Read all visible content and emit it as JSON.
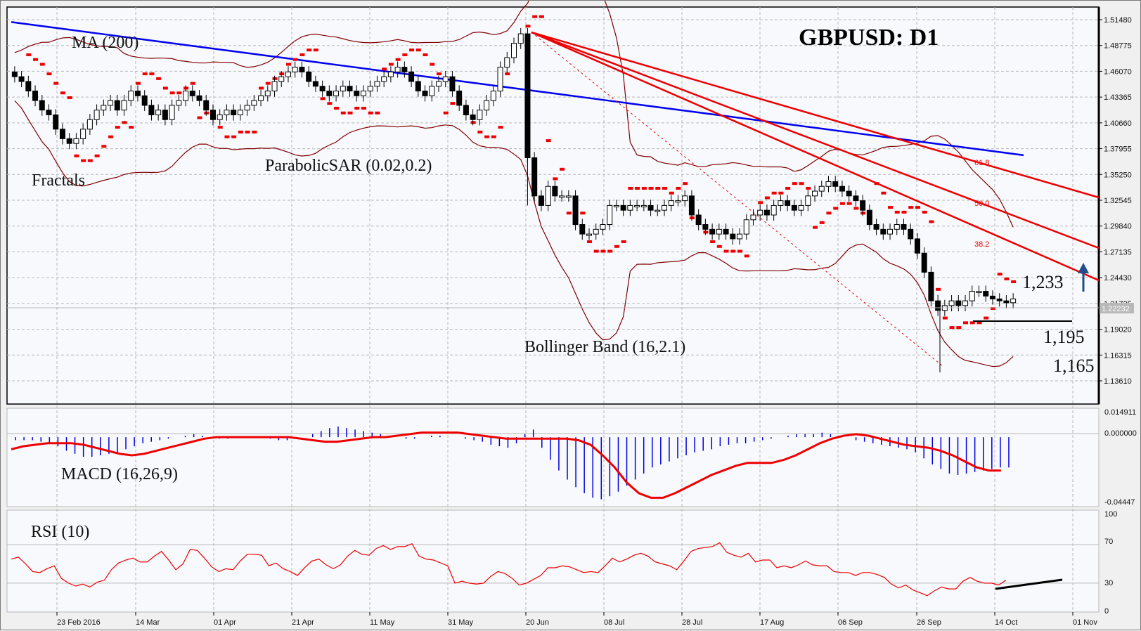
{
  "chart_data": [
    {
      "type": "candlestick",
      "title": "GBPUSD: D1",
      "symbol": "GBPUSD",
      "timeframe": "D1",
      "y_ticks": [
        "1.51480",
        "1.48775",
        "1.46070",
        "1.43365",
        "1.40660",
        "1.37955",
        "1.35250",
        "1.32545",
        "1.29840",
        "1.27135",
        "1.24430",
        "1.21725",
        "1.19020",
        "1.16315",
        "1.13610"
      ],
      "ylim": [
        1.1361,
        1.5148
      ],
      "current_price": "1.22232",
      "x_ticks": [
        "23 Feb 2016",
        "14 Mar",
        "01 Apr",
        "21 Apr",
        "11 May",
        "31 May",
        "20 Jun",
        "08 Jul",
        "28 Jul",
        "17 Aug",
        "06 Sep",
        "26 Sep",
        "14 Oct",
        "01 Nov"
      ],
      "indicators": [
        "MA (200)",
        "Fractals",
        "ParabolicSAR (0.02,0.2)",
        "Bollinger Band (16,2.1)"
      ],
      "fibonacci_fan_levels": [
        "61.8",
        "50.0",
        "38.2"
      ],
      "annotations": {
        "resistance": "1,233",
        "support": "1,195",
        "target_low": "1,165"
      },
      "close_series_approx": [
        1.455,
        1.45,
        1.44,
        1.43,
        1.42,
        1.415,
        1.4,
        1.39,
        1.385,
        1.39,
        1.4,
        1.41,
        1.42,
        1.425,
        1.43,
        1.42,
        1.43,
        1.44,
        1.435,
        1.425,
        1.415,
        1.42,
        1.41,
        1.425,
        1.43,
        1.44,
        1.435,
        1.43,
        1.42,
        1.41,
        1.415,
        1.42,
        1.415,
        1.42,
        1.425,
        1.43,
        1.435,
        1.44,
        1.45,
        1.455,
        1.46,
        1.465,
        1.46,
        1.45,
        1.445,
        1.44,
        1.435,
        1.44,
        1.445,
        1.44,
        1.435,
        1.44,
        1.445,
        1.45,
        1.455,
        1.46,
        1.465,
        1.46,
        1.45,
        1.44,
        1.435,
        1.445,
        1.45,
        1.455,
        1.44,
        1.425,
        1.415,
        1.41,
        1.42,
        1.43,
        1.44,
        1.465,
        1.475,
        1.49,
        1.5,
        1.37,
        1.33,
        1.32,
        1.34,
        1.33,
        1.33,
        1.33,
        1.3,
        1.29,
        1.29,
        1.295,
        1.3,
        1.32,
        1.32,
        1.315,
        1.32,
        1.32,
        1.32,
        1.315,
        1.315,
        1.32,
        1.325,
        1.325,
        1.33,
        1.31,
        1.3,
        1.295,
        1.29,
        1.295,
        1.29,
        1.285,
        1.29,
        1.305,
        1.31,
        1.315,
        1.31,
        1.32,
        1.325,
        1.32,
        1.315,
        1.32,
        1.33,
        1.335,
        1.34,
        1.345,
        1.34,
        1.335,
        1.33,
        1.325,
        1.315,
        1.3,
        1.295,
        1.29,
        1.295,
        1.3,
        1.295,
        1.285,
        1.27,
        1.25,
        1.22,
        1.21,
        1.215,
        1.22,
        1.215,
        1.22,
        1.23,
        1.23,
        1.225,
        1.222,
        1.22,
        1.218,
        1.222
      ]
    },
    {
      "type": "bar+line",
      "title": "MACD (16,26,9)",
      "y_ticks": [
        "0.014911",
        "0.000000",
        "-0.04447"
      ],
      "ylim": [
        -0.04447,
        0.014911
      ],
      "histogram_approx": [
        -0.002,
        -0.002,
        -0.002,
        -0.003,
        -0.004,
        -0.006,
        -0.009,
        -0.011,
        -0.013,
        -0.013,
        -0.012,
        -0.011,
        -0.01,
        -0.008,
        -0.006,
        -0.004,
        -0.003,
        -0.002,
        -0.001,
        0.0,
        0.001,
        0.002,
        0.001,
        0.0,
        -0.001,
        -0.001,
        0.0,
        0.0,
        0.0,
        0.0,
        -0.001,
        -0.002,
        -0.002,
        -0.001,
        0.0,
        0.002,
        0.004,
        0.006,
        0.007,
        0.006,
        0.005,
        0.004,
        0.003,
        0.002,
        0.001,
        0.0,
        -0.001,
        -0.001,
        0.0,
        0.001,
        0.001,
        0.0,
        0.0,
        -0.001,
        -0.002,
        -0.003,
        -0.005,
        -0.006,
        -0.007,
        -0.004,
        0.002,
        0.005,
        -0.007,
        -0.015,
        -0.022,
        -0.028,
        -0.033,
        -0.037,
        -0.04,
        -0.041,
        -0.039,
        -0.036,
        -0.032,
        -0.028,
        -0.024,
        -0.02,
        -0.018,
        -0.016,
        -0.014,
        -0.012,
        -0.01,
        -0.009,
        -0.008,
        -0.006,
        -0.005,
        -0.004,
        -0.004,
        -0.003,
        -0.002,
        -0.001,
        0.0,
        0.001,
        0.002,
        0.002,
        0.002,
        0.003,
        0.002,
        0.001,
        0.0,
        -0.002,
        -0.003,
        -0.004,
        -0.005,
        -0.006,
        -0.007,
        -0.008,
        -0.01,
        -0.014,
        -0.018,
        -0.021,
        -0.024,
        -0.025,
        -0.024,
        -0.023,
        -0.022,
        -0.021,
        -0.02,
        -0.02
      ],
      "signal_approx": [
        -0.008,
        -0.006,
        -0.005,
        -0.004,
        -0.004,
        -0.004,
        -0.005,
        -0.007,
        -0.009,
        -0.011,
        -0.012,
        -0.011,
        -0.009,
        -0.007,
        -0.005,
        -0.003,
        -0.001,
        0.0,
        0.0,
        0.0,
        0.0,
        0.0,
        0.0,
        0.0,
        -0.001,
        -0.002,
        -0.003,
        -0.003,
        -0.002,
        -0.001,
        0.0,
        0.0,
        0.001,
        0.002,
        0.003,
        0.003,
        0.003,
        0.003,
        0.002,
        0.001,
        0.0,
        -0.001,
        -0.001,
        -0.001,
        -0.001,
        -0.001,
        -0.001,
        -0.002,
        -0.005,
        -0.012,
        -0.02,
        -0.03,
        -0.037,
        -0.04,
        -0.04,
        -0.037,
        -0.033,
        -0.029,
        -0.025,
        -0.022,
        -0.019,
        -0.017,
        -0.017,
        -0.017,
        -0.015,
        -0.012,
        -0.008,
        -0.004,
        -0.001,
        0.001,
        0.002,
        0.001,
        -0.001,
        -0.003,
        -0.005,
        -0.006,
        -0.007,
        -0.009,
        -0.012,
        -0.016,
        -0.02,
        -0.022,
        -0.022
      ]
    },
    {
      "type": "line",
      "title": "RSI (10)",
      "y_ticks": [
        "100",
        "70",
        "30",
        "0"
      ],
      "ylim": [
        0,
        100
      ],
      "levels": [
        70,
        30
      ],
      "values_approx": [
        55,
        57,
        50,
        42,
        41,
        45,
        48,
        35,
        30,
        27,
        29,
        26,
        31,
        33,
        44,
        51,
        54,
        56,
        52,
        52,
        58,
        63,
        54,
        44,
        50,
        65,
        64,
        56,
        47,
        42,
        45,
        44,
        53,
        60,
        60,
        59,
        48,
        51,
        45,
        42,
        38,
        46,
        53,
        55,
        49,
        45,
        49,
        58,
        64,
        60,
        59,
        66,
        69,
        65,
        68,
        68,
        71,
        58,
        55,
        54,
        51,
        48,
        30,
        32,
        30,
        29,
        30,
        37,
        42,
        40,
        35,
        28,
        30,
        34,
        38,
        46,
        46,
        48,
        47,
        44,
        41,
        42,
        41,
        48,
        56,
        52,
        55,
        59,
        61,
        58,
        52,
        50,
        48,
        44,
        53,
        63,
        66,
        67,
        68,
        72,
        62,
        59,
        57,
        61,
        52,
        54,
        54,
        46,
        48,
        46,
        49,
        53,
        49,
        48,
        48,
        42,
        41,
        41,
        38,
        41,
        41,
        39,
        36,
        29,
        25,
        28,
        23,
        20,
        17,
        22,
        26,
        24,
        24,
        32,
        36,
        32,
        30,
        30,
        28,
        33
      ]
    }
  ],
  "labels": {
    "title": "GBPUSD: D1",
    "ma": "MA (200)",
    "fractals": "Fractals",
    "psar": "ParabolicSAR (0.02,0.2)",
    "bollinger": "Bollinger Band (16,2.1)",
    "macd": "MACD (16,26,9)",
    "rsi": "RSI (10)",
    "fib618": "61.8",
    "fib500": "50.0",
    "fib382": "38.2",
    "level_1233": "1,233",
    "level_1195": "1,195",
    "level_1165": "1,165",
    "price_tag": "1.22232",
    "macd_top": "0.014911",
    "macd_zero": "0.000000",
    "macd_bottom": "-0.04447",
    "rsi_100": "100",
    "rsi_70": "70",
    "rsi_30": "30",
    "rsi_0": "0"
  },
  "colors": {
    "background": "#f7f9fd",
    "bullish_body": "#ffffff",
    "bearish_body": "#000000",
    "ma200": "#0000ee",
    "bollinger": "#800000",
    "psar": "#ee0000",
    "fractal_up": "#00dd00",
    "fractal_down": "#ee0000",
    "fib_fan": "#ee0000",
    "macd_hist": "#0000dd",
    "macd_signal": "#ee0000",
    "rsi_line": "#ee0000",
    "arrow": "#1f4e8c",
    "grid": "#b8b8b8"
  }
}
